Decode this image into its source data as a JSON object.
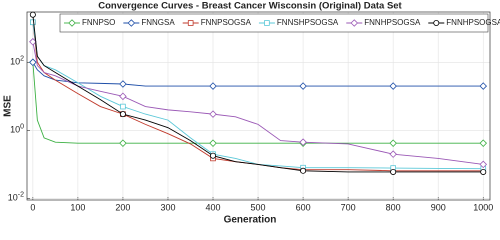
{
  "chart_data": {
    "type": "line",
    "title": "Convergence Curves - Breast Cancer Wisconsin (Original) Data Set",
    "x_label": "Generation",
    "y_label": "MSE",
    "log_y": true,
    "grid": true,
    "xlim": [
      -13,
      1015
    ],
    "ylim": [
      0.009,
      3000
    ],
    "xticks": [
      0,
      100,
      200,
      300,
      400,
      500,
      600,
      700,
      800,
      900,
      1000
    ],
    "yticks": [
      {
        "value": 0.01,
        "label": "10^-2"
      },
      {
        "value": 1,
        "label": "10^0"
      },
      {
        "value": 100,
        "label": "10^2"
      }
    ],
    "x": [
      0,
      10,
      25,
      50,
      100,
      150,
      200,
      250,
      300,
      350,
      400,
      450,
      500,
      550,
      600,
      700,
      800,
      900,
      1000
    ],
    "series": [
      {
        "name": "FNNPSO",
        "color": "#3cb043",
        "marker": "diamond",
        "values": [
          100,
          2,
          0.6,
          0.45,
          0.42,
          0.42,
          0.42,
          0.42,
          0.42,
          0.42,
          0.42,
          0.42,
          0.42,
          0.42,
          0.42,
          0.42,
          0.42,
          0.42,
          0.42
        ]
      },
      {
        "name": "FNNGSA",
        "color": "#1f4fa8",
        "marker": "diamond",
        "values": [
          100,
          60,
          40,
          30,
          25,
          24,
          23,
          20,
          20,
          20,
          20,
          20,
          20,
          20,
          20,
          20,
          20,
          20,
          20
        ]
      },
      {
        "name": "FNNPSOGSA",
        "color": "#c0392b",
        "marker": "square",
        "values": [
          1500,
          100,
          50,
          30,
          12,
          5,
          3,
          1.5,
          0.8,
          0.4,
          0.15,
          0.12,
          0.1,
          0.08,
          0.07,
          0.07,
          0.065,
          0.065,
          0.065
        ]
      },
      {
        "name": "FNNSHPSOGSA",
        "color": "#5bc8d8",
        "marker": "square",
        "values": [
          1500,
          150,
          80,
          60,
          25,
          10,
          5,
          3,
          2,
          0.6,
          0.2,
          0.15,
          0.1,
          0.09,
          0.08,
          0.08,
          0.078,
          0.076,
          0.075
        ]
      },
      {
        "name": "FNNHPSOGSA",
        "color": "#9b59b6",
        "marker": "diamond",
        "values": [
          400,
          80,
          50,
          40,
          20,
          14,
          10,
          5,
          4,
          3.5,
          3,
          2.5,
          1.5,
          0.5,
          0.45,
          0.4,
          0.2,
          0.15,
          0.1
        ]
      },
      {
        "name": "FNNHPSOGSA-ARS-PI",
        "color": "#000000",
        "marker": "circle",
        "values": [
          2500,
          150,
          80,
          50,
          20,
          8,
          3,
          2,
          1.2,
          0.5,
          0.18,
          0.12,
          0.1,
          0.08,
          0.065,
          0.06,
          0.06,
          0.06,
          0.06
        ]
      }
    ]
  }
}
